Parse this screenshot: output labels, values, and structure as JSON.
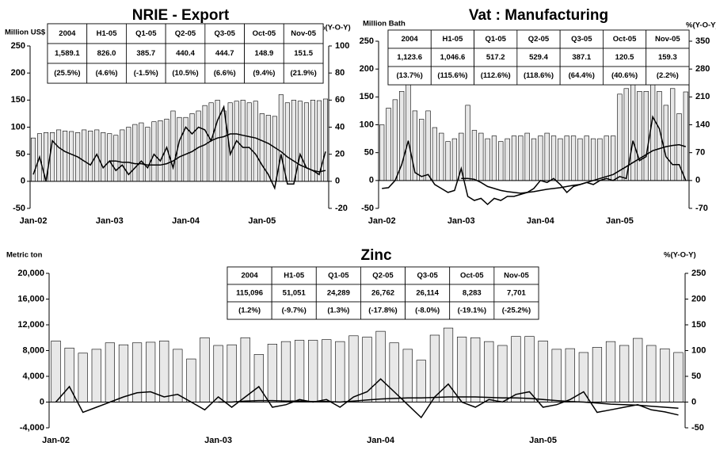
{
  "chart_data": [
    {
      "type": "bar",
      "title": "NRIE - Export",
      "y_label": "Million US$",
      "y2_label": "%(Y-O-Y)",
      "categories": [
        "Jan-02",
        null,
        null,
        null,
        null,
        null,
        null,
        null,
        null,
        null,
        null,
        null,
        "Jan-03",
        null,
        null,
        null,
        null,
        null,
        null,
        null,
        null,
        null,
        null,
        null,
        "Jan-04",
        null,
        null,
        null,
        null,
        null,
        null,
        null,
        null,
        null,
        null,
        null,
        "Jan-05",
        null,
        null,
        null,
        null,
        null,
        null,
        null,
        null,
        null,
        null
      ],
      "ylim": [
        -50,
        250
      ],
      "yticks": [
        -50,
        0,
        50,
        100,
        150,
        200,
        250
      ],
      "y2lim": [
        -20,
        100
      ],
      "y2ticks": [
        -20,
        0,
        20,
        40,
        60,
        80,
        100
      ],
      "series": [
        {
          "type": "bar",
          "color": "#e8e8e8",
          "values": [
            80,
            88,
            90,
            90,
            95,
            93,
            92,
            90,
            95,
            93,
            95,
            90,
            88,
            85,
            95,
            100,
            105,
            108,
            100,
            110,
            112,
            115,
            130,
            118,
            118,
            125,
            130,
            140,
            145,
            150,
            130,
            145,
            148,
            150,
            145,
            148,
            125,
            122,
            120,
            160,
            145,
            150,
            148,
            145,
            150,
            149,
            152
          ]
        },
        {
          "type": "line",
          "axis": "y2",
          "color": "#000000",
          "values": [
            5,
            18,
            0,
            30,
            25,
            22,
            20,
            18,
            15,
            12,
            20,
            10,
            15,
            8,
            12,
            5,
            10,
            15,
            10,
            20,
            15,
            25,
            10,
            30,
            40,
            35,
            40,
            38,
            30,
            45,
            55,
            20,
            30,
            25,
            25,
            20,
            12,
            5,
            -5,
            20,
            -2,
            -2,
            20,
            10,
            8,
            5,
            22
          ]
        },
        {
          "type": "line",
          "axis": "y2",
          "color": "#000000",
          "values": [
            null,
            null,
            null,
            null,
            null,
            null,
            null,
            null,
            null,
            null,
            null,
            null,
            15,
            15,
            14,
            14,
            13,
            13,
            12,
            12,
            12,
            13,
            15,
            18,
            20,
            22,
            25,
            27,
            30,
            32,
            33,
            35,
            35,
            34,
            33,
            32,
            30,
            28,
            25,
            22,
            18,
            15,
            12,
            10,
            8,
            7,
            8
          ]
        }
      ],
      "table": {
        "columns": [
          "2004",
          "H1-05",
          "Q1-05",
          "Q2-05",
          "Q3-05",
          "Oct-05",
          "Nov-05"
        ],
        "rows": [
          [
            "1,589.1",
            "826.0",
            "385.7",
            "440.4",
            "444.7",
            "148.9",
            "151.5"
          ],
          [
            "(25.5%)",
            "(4.6%)",
            "(-1.5%)",
            "(10.5%)",
            "(6.6%)",
            "(9.4%)",
            "(21.9%)"
          ]
        ]
      }
    },
    {
      "type": "bar",
      "title": "Vat : Manufacturing",
      "y_label": "Million Bath",
      "y2_label": "%(Y-O-Y)",
      "categories": [
        "Jan-02",
        null,
        null,
        null,
        null,
        null,
        null,
        null,
        null,
        null,
        null,
        null,
        "Jan-03",
        null,
        null,
        null,
        null,
        null,
        null,
        null,
        null,
        null,
        null,
        null,
        "Jan-04",
        null,
        null,
        null,
        null,
        null,
        null,
        null,
        null,
        null,
        null,
        null,
        "Jan-05",
        null,
        null,
        null,
        null,
        null,
        null,
        null,
        null,
        null,
        null
      ],
      "ylim": [
        -50,
        250
      ],
      "yticks": [
        -50,
        0,
        50,
        100,
        150,
        200,
        250
      ],
      "y2lim": [
        -70,
        350
      ],
      "y2ticks": [
        -70,
        0,
        70,
        140,
        210,
        280,
        350
      ],
      "series": [
        {
          "type": "bar",
          "color": "#e8e8e8",
          "values": [
            100,
            130,
            145,
            160,
            205,
            125,
            110,
            125,
            95,
            85,
            70,
            75,
            85,
            135,
            90,
            85,
            75,
            80,
            70,
            75,
            80,
            80,
            85,
            75,
            80,
            85,
            80,
            75,
            80,
            80,
            75,
            80,
            75,
            75,
            80,
            80,
            155,
            165,
            200,
            160,
            160,
            215,
            160,
            135,
            165,
            120,
            159
          ]
        },
        {
          "type": "line",
          "axis": "y2",
          "color": "#000000",
          "values": [
            -20,
            -18,
            0,
            40,
            100,
            20,
            10,
            15,
            -10,
            -20,
            -30,
            -25,
            30,
            -40,
            -50,
            -45,
            -60,
            -45,
            -50,
            -40,
            -40,
            -35,
            -30,
            -20,
            0,
            -5,
            5,
            -10,
            -30,
            -15,
            -10,
            -5,
            -10,
            0,
            5,
            0,
            10,
            5,
            100,
            50,
            60,
            160,
            130,
            60,
            40,
            40,
            0
          ]
        },
        {
          "type": "line",
          "axis": "y2",
          "color": "#000000",
          "values": [
            null,
            null,
            null,
            null,
            null,
            null,
            null,
            null,
            null,
            null,
            null,
            null,
            5,
            5,
            3,
            -5,
            -15,
            -20,
            -25,
            -28,
            -30,
            -32,
            -30,
            -28,
            -25,
            -22,
            -20,
            -18,
            -15,
            -12,
            -10,
            -5,
            0,
            5,
            10,
            15,
            25,
            35,
            45,
            55,
            65,
            75,
            80,
            85,
            88,
            90,
            85
          ]
        }
      ],
      "table": {
        "columns": [
          "2004",
          "H1-05",
          "Q1-05",
          "Q2-05",
          "Q3-05",
          "Oct-05",
          "Nov-05"
        ],
        "rows": [
          [
            "1,123.6",
            "1,046.6",
            "517.2",
            "529.4",
            "387.1",
            "120.5",
            "159.3"
          ],
          [
            "(13.7%)",
            "(115.6%)",
            "(112.6%)",
            "(118.6%)",
            "(64.4%)",
            "(40.6%)",
            "(2.2%)"
          ]
        ]
      }
    },
    {
      "type": "bar",
      "title": "Zinc",
      "y_label": "Metric ton",
      "y2_label": "%(Y-O-Y)",
      "categories": [
        "Jan-02",
        null,
        null,
        null,
        null,
        null,
        null,
        null,
        null,
        null,
        null,
        null,
        "Jan-03",
        null,
        null,
        null,
        null,
        null,
        null,
        null,
        null,
        null,
        null,
        null,
        "Jan-04",
        null,
        null,
        null,
        null,
        null,
        null,
        null,
        null,
        null,
        null,
        null,
        "Jan-05",
        null,
        null,
        null,
        null,
        null,
        null,
        null,
        null,
        null,
        null
      ],
      "ylim": [
        -4000,
        20000
      ],
      "yticks": [
        {
          "value": -4000,
          "label": "-4,000"
        },
        0,
        {
          "value": 4000,
          "label": "4,000"
        },
        {
          "value": 8000,
          "label": "8,000"
        },
        {
          "value": 12000,
          "label": "12,000"
        },
        {
          "value": 16000,
          "label": "16,000"
        },
        {
          "value": 20000,
          "label": "20,000"
        }
      ],
      "y2lim": [
        -50,
        250
      ],
      "y2ticks": [
        -50,
        0,
        50,
        100,
        150,
        200,
        250
      ],
      "series": [
        {
          "type": "bar",
          "color": "#e8e8e8",
          "values": [
            9500,
            8400,
            7600,
            8200,
            9200,
            8900,
            9200,
            9300,
            9500,
            8200,
            6700,
            10000,
            8800,
            8900,
            10000,
            7400,
            9000,
            9400,
            9600,
            9600,
            9700,
            9400,
            10300,
            10100,
            11000,
            9200,
            8200,
            6500,
            10400,
            11500,
            10100,
            10000,
            9400,
            8800,
            10200,
            10200,
            9500,
            8200,
            8300,
            7700,
            8500,
            9400,
            8800,
            9900,
            8800,
            8283,
            7701
          ]
        },
        {
          "type": "line",
          "axis": "y2",
          "color": "#000000",
          "values": [
            0,
            30,
            -20,
            -10,
            0,
            10,
            18,
            20,
            10,
            15,
            0,
            -15,
            10,
            -10,
            10,
            30,
            -10,
            -5,
            5,
            0,
            5,
            -10,
            10,
            20,
            45,
            20,
            -5,
            -30,
            10,
            35,
            0,
            -10,
            5,
            0,
            15,
            20,
            -10,
            -5,
            5,
            20,
            -20,
            -15,
            -10,
            -5,
            -15,
            -19,
            -25
          ]
        },
        {
          "type": "line",
          "axis": "y2",
          "color": "#000000",
          "values": [
            null,
            null,
            null,
            null,
            null,
            null,
            null,
            null,
            null,
            null,
            null,
            null,
            0,
            0,
            2,
            3,
            3,
            2,
            2,
            1,
            1,
            0,
            2,
            4,
            6,
            7,
            8,
            8,
            9,
            10,
            10,
            10,
            9,
            8,
            8,
            7,
            5,
            3,
            1,
            0,
            -2,
            -4,
            -5,
            -6,
            -8,
            -10,
            -12
          ]
        }
      ],
      "table": {
        "columns": [
          "2004",
          "H1-05",
          "Q1-05",
          "Q2-05",
          "Q3-05",
          "Oct-05",
          "Nov-05"
        ],
        "rows": [
          [
            "115,096",
            "51,051",
            "24,289",
            "26,762",
            "26,114",
            "8,283",
            "7,701"
          ],
          [
            "(1.2%)",
            "(-9.7%)",
            "(1.3%)",
            "(-17.8%)",
            "(-8.0%)",
            "(-19.1%)",
            "(-25.2%)"
          ]
        ]
      }
    }
  ]
}
